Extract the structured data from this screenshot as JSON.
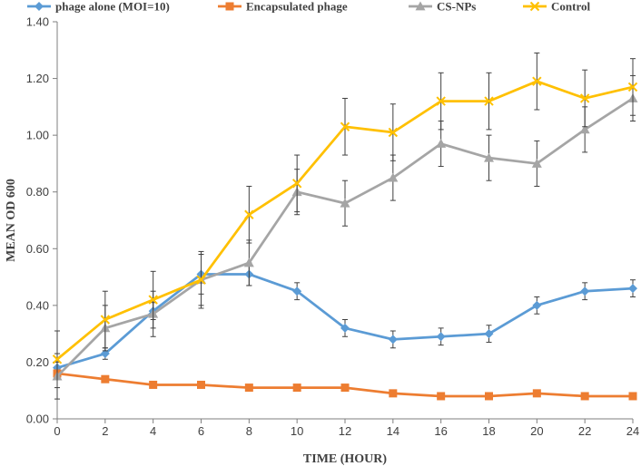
{
  "chart_data": {
    "type": "line",
    "title": "",
    "xlabel": "TIME (HOUR)",
    "ylabel": "MEAN OD 600",
    "x": [
      0,
      2,
      4,
      6,
      8,
      10,
      12,
      14,
      16,
      18,
      20,
      22,
      24
    ],
    "xlim": [
      0,
      24
    ],
    "ylim": [
      0,
      1.4
    ],
    "x_ticks": [
      "0",
      "2",
      "4",
      "6",
      "8",
      "10",
      "12",
      "14",
      "16",
      "18",
      "20",
      "22",
      "24"
    ],
    "y_ticks": [
      "0.00",
      "0.20",
      "0.40",
      "0.60",
      "0.80",
      "1.00",
      "1.20",
      "1.40"
    ],
    "grid": false,
    "legend_position": "top",
    "series": [
      {
        "name": "phage alone (MOI=10)",
        "color": "#5B9BD5",
        "marker": "diamond",
        "values": [
          0.18,
          0.23,
          0.38,
          0.51,
          0.51,
          0.45,
          0.32,
          0.28,
          0.29,
          0.3,
          0.4,
          0.45,
          0.46
        ],
        "errors": [
          0.02,
          0.02,
          0.03,
          0.07,
          0.04,
          0.03,
          0.03,
          0.03,
          0.03,
          0.03,
          0.03,
          0.03,
          0.03
        ]
      },
      {
        "name": "Encapsulated phage",
        "color": "#ED7D31",
        "marker": "square",
        "values": [
          0.16,
          0.14,
          0.12,
          0.12,
          0.11,
          0.11,
          0.11,
          0.09,
          0.08,
          0.08,
          0.09,
          0.08,
          0.08
        ],
        "errors": [
          0,
          0,
          0,
          0,
          0,
          0,
          0,
          0,
          0,
          0,
          0,
          0,
          0
        ]
      },
      {
        "name": "CS-NPs",
        "color": "#A5A5A5",
        "marker": "triangle",
        "values": [
          0.15,
          0.32,
          0.37,
          0.49,
          0.55,
          0.8,
          0.76,
          0.85,
          0.97,
          0.92,
          0.9,
          1.02,
          1.13
        ],
        "errors": [
          0.08,
          0.08,
          0.08,
          0.09,
          0.08,
          0.08,
          0.08,
          0.08,
          0.08,
          0.08,
          0.08,
          0.08,
          0.08
        ]
      },
      {
        "name": "Control",
        "color": "#FFC000",
        "marker": "x",
        "values": [
          0.21,
          0.35,
          0.42,
          0.49,
          0.72,
          0.83,
          1.03,
          1.01,
          1.12,
          1.12,
          1.19,
          1.13,
          1.17
        ],
        "errors": [
          0.1,
          0.1,
          0.1,
          0.1,
          0.1,
          0.1,
          0.1,
          0.1,
          0.1,
          0.1,
          0.1,
          0.1,
          0.1
        ]
      }
    ]
  }
}
